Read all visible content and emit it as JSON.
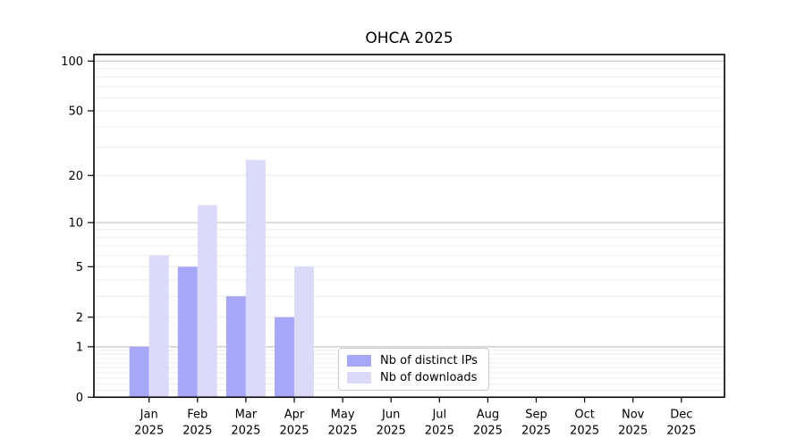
{
  "figure": {
    "title": "OHCA 2025",
    "background_color": "#ffffff"
  },
  "chart_data": {
    "type": "bar",
    "title": "OHCA 2025",
    "categories": [
      "Jan 2025",
      "Feb 2025",
      "Mar 2025",
      "Apr 2025",
      "May 2025",
      "Jun 2025",
      "Jul 2025",
      "Aug 2025",
      "Sep 2025",
      "Oct 2025",
      "Nov 2025",
      "Dec 2025"
    ],
    "series": [
      {
        "name": "Nb of distinct IPs",
        "color": "#a7a7f7",
        "values": [
          1,
          5,
          3,
          2,
          0,
          0,
          0,
          0,
          0,
          0,
          0,
          0
        ]
      },
      {
        "name": "Nb of downloads",
        "color": "#dbdbf9",
        "values": [
          6,
          13,
          25,
          5,
          0,
          0,
          0,
          0,
          0,
          0,
          0,
          0
        ]
      }
    ],
    "xlabel": "",
    "ylabel": "",
    "y_scale": "log(1+x)",
    "y_ticks": [
      0,
      1,
      2,
      5,
      10,
      20,
      50,
      100
    ],
    "ylim": [
      0,
      110
    ],
    "grid": true,
    "legend_position": "inside lower center"
  },
  "legend": {
    "items": [
      {
        "label": "Nb of distinct IPs",
        "swatch_color": "#a7a7f7"
      },
      {
        "label": "Nb of downloads",
        "swatch_color": "#dbdbf9"
      }
    ]
  },
  "colors": {
    "major_grid": "#bdbdbd",
    "minor_grid": "#ececec",
    "spine": "#000000",
    "tick_label": "#000000"
  }
}
